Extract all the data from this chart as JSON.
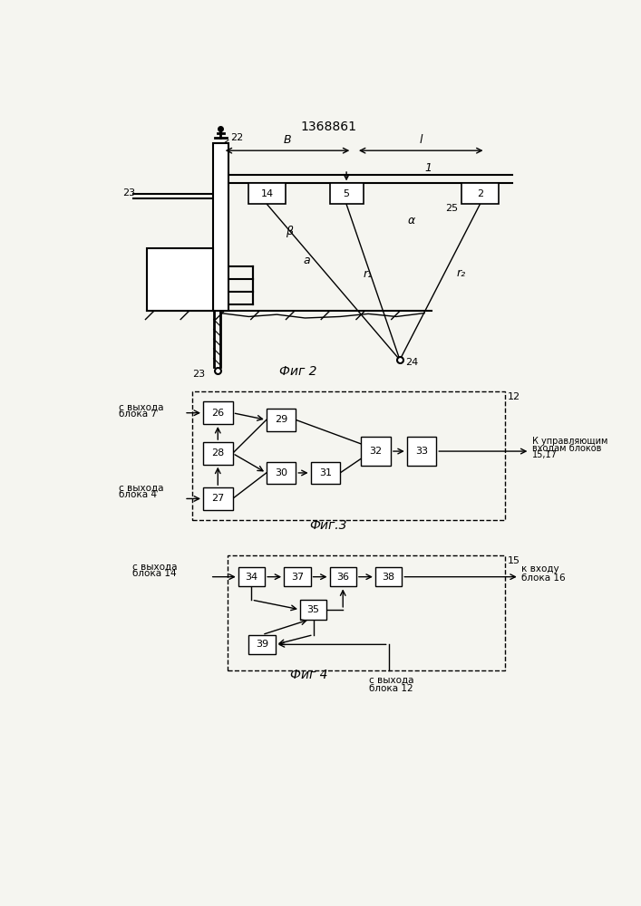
{
  "title": "1368861",
  "bg_color": "#f5f5f0",
  "fig2_label": "Фиг 2",
  "fig3_label": "Фиг.3",
  "fig4_label": "Фиг 4"
}
